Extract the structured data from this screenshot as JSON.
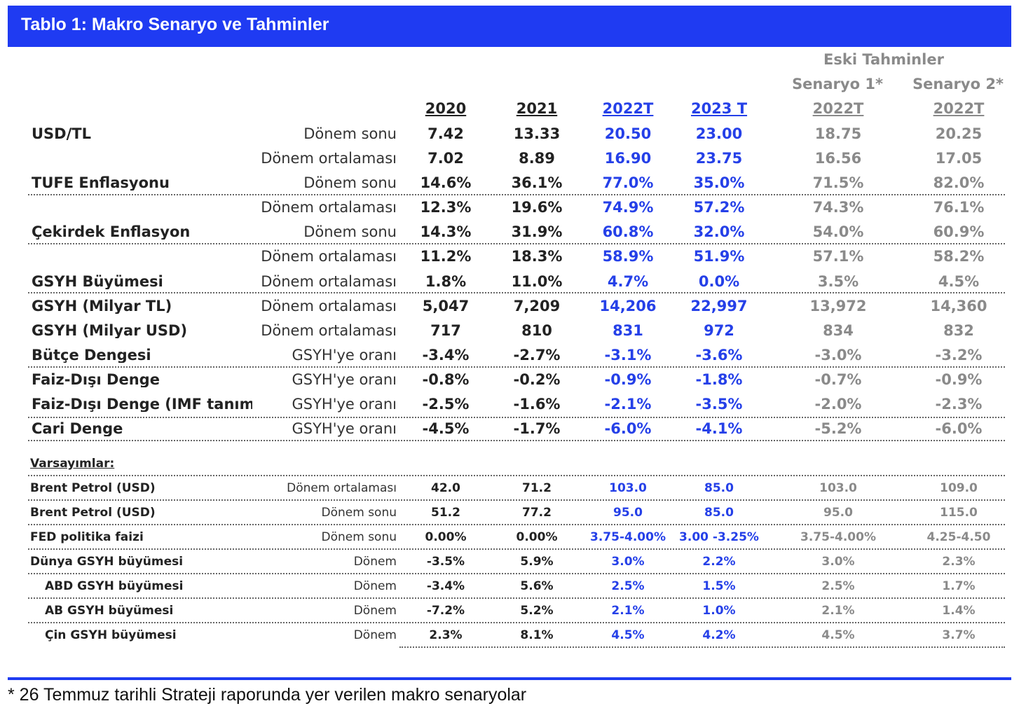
{
  "title": "Tablo 1: Makro Senaryo ve Tahminler",
  "header": {
    "eski": "Eski Tahminler",
    "senaryo1": "Senaryo 1*",
    "senaryo2": "Senaryo 2*",
    "cols": [
      "2020",
      "2021",
      "2022T",
      "2023 T",
      "2022T",
      "2022T"
    ]
  },
  "rows": [
    {
      "label": "USD/TL",
      "sub": "Dönem sonu",
      "v": [
        "7.42",
        "13.33",
        "20.50",
        "23.00",
        "18.75",
        "20.25"
      ]
    },
    {
      "label": "",
      "sub": "Dönem ortalaması",
      "v": [
        "7.02",
        "8.89",
        "16.90",
        "23.75",
        "16.56",
        "17.05"
      ]
    },
    {
      "label": "TÜFE Enflasyonu",
      "sub": "Dönem sonu",
      "v": [
        "14.6%",
        "36.1%",
        "77.0%",
        "35.0%",
        "71.5%",
        "82.0%"
      ]
    },
    {
      "label": "",
      "sub": "Dönem ortalaması",
      "v": [
        "12.3%",
        "19.6%",
        "74.9%",
        "57.2%",
        "74.3%",
        "76.1%"
      ]
    },
    {
      "label": "Çekirdek Enflasyon",
      "sub": "Dönem sonu",
      "v": [
        "14.3%",
        "31.9%",
        "60.8%",
        "32.0%",
        "54.0%",
        "60.9%"
      ]
    },
    {
      "label": "",
      "sub": "Dönem ortalaması",
      "v": [
        "11.2%",
        "18.3%",
        "58.9%",
        "51.9%",
        "57.1%",
        "58.2%"
      ]
    },
    {
      "label": "GSYH Büyümesi",
      "sub": "Dönem ortalaması",
      "v": [
        "1.8%",
        "11.0%",
        "4.7%",
        "0.0%",
        "3.5%",
        "4.5%"
      ]
    },
    {
      "label": "GSYH (Milyar TL)",
      "sub": "Dönem ortalaması",
      "v": [
        "5,047",
        "7,209",
        "14,206",
        "22,997",
        "13,972",
        "14,360"
      ]
    },
    {
      "label": "GSYH (Milyar USD)",
      "sub": "Dönem ortalaması",
      "v": [
        "717",
        "810",
        "831",
        "972",
        "834",
        "832"
      ]
    },
    {
      "label": "Bütçe Dengesi",
      "sub": "GSYH'ye oranı",
      "v": [
        "-3.4%",
        "-2.7%",
        "-3.1%",
        "-3.6%",
        "-3.0%",
        "-3.2%"
      ]
    },
    {
      "label": "Faiz-Dışı Denge",
      "sub": "GSYH'ye oranı",
      "v": [
        "-0.8%",
        "-0.2%",
        "-0.9%",
        "-1.8%",
        "-0.7%",
        "-0.9%"
      ]
    },
    {
      "label": "Faiz-Dışı Denge (IMF tanımlı)",
      "sub": "GSYH'ye oranı",
      "v": [
        "-2.5%",
        "-1.6%",
        "-2.1%",
        "-3.5%",
        "-2.0%",
        "-2.3%"
      ]
    },
    {
      "label": "Cari Denge",
      "sub": "GSYH'ye oranı",
      "v": [
        "-4.5%",
        "-1.7%",
        "-6.0%",
        "-4.1%",
        "-5.2%",
        "-6.0%"
      ]
    }
  ],
  "assumptions_title": "Varsayımlar:",
  "assumptions": [
    {
      "label": "Brent Petrol (USD)",
      "sub": "Dönem ortalaması",
      "v": [
        "42.0",
        "71.2",
        "103.0",
        "85.0",
        "103.0",
        "109.0"
      ]
    },
    {
      "label": "Brent Petrol (USD)",
      "sub": "Dönem sonu",
      "v": [
        "51.2",
        "77.2",
        "95.0",
        "85.0",
        "95.0",
        "115.0"
      ]
    },
    {
      "label": "FED politika faizi",
      "sub": "Dönem sonu",
      "v": [
        "0.00%",
        "0.00%",
        "3.75-4.00%",
        "3.00 -3.25%",
        "3.75-4.00%",
        "4.25-4.50"
      ]
    },
    {
      "label": "Dünya GSYH büyümesi",
      "sub": "Dönem",
      "v": [
        "-3.5%",
        "5.9%",
        "3.0%",
        "2.2%",
        "3.0%",
        "2.3%"
      ]
    },
    {
      "label": "ABD GSYH büyümesi",
      "sub": "Dönem",
      "v": [
        "-3.4%",
        "5.6%",
        "2.5%",
        "1.5%",
        "2.5%",
        "1.7%"
      ]
    },
    {
      "label": "AB GSYH büyümesi",
      "sub": "Dönem",
      "v": [
        "-7.2%",
        "5.2%",
        "2.1%",
        "1.0%",
        "2.1%",
        "1.4%"
      ]
    },
    {
      "label": "Çin GSYH büyümesi",
      "sub": "Dönem",
      "v": [
        "2.3%",
        "8.1%",
        "4.5%",
        "4.2%",
        "4.5%",
        "3.7%"
      ]
    }
  ],
  "footnote": "* 26 Temmuz tarihli Strateji raporunda yer verilen makro senaryolar",
  "colors": {
    "accent": "#1f3bf2",
    "forecast": "#2540e8",
    "old": "#8a8a8a"
  }
}
